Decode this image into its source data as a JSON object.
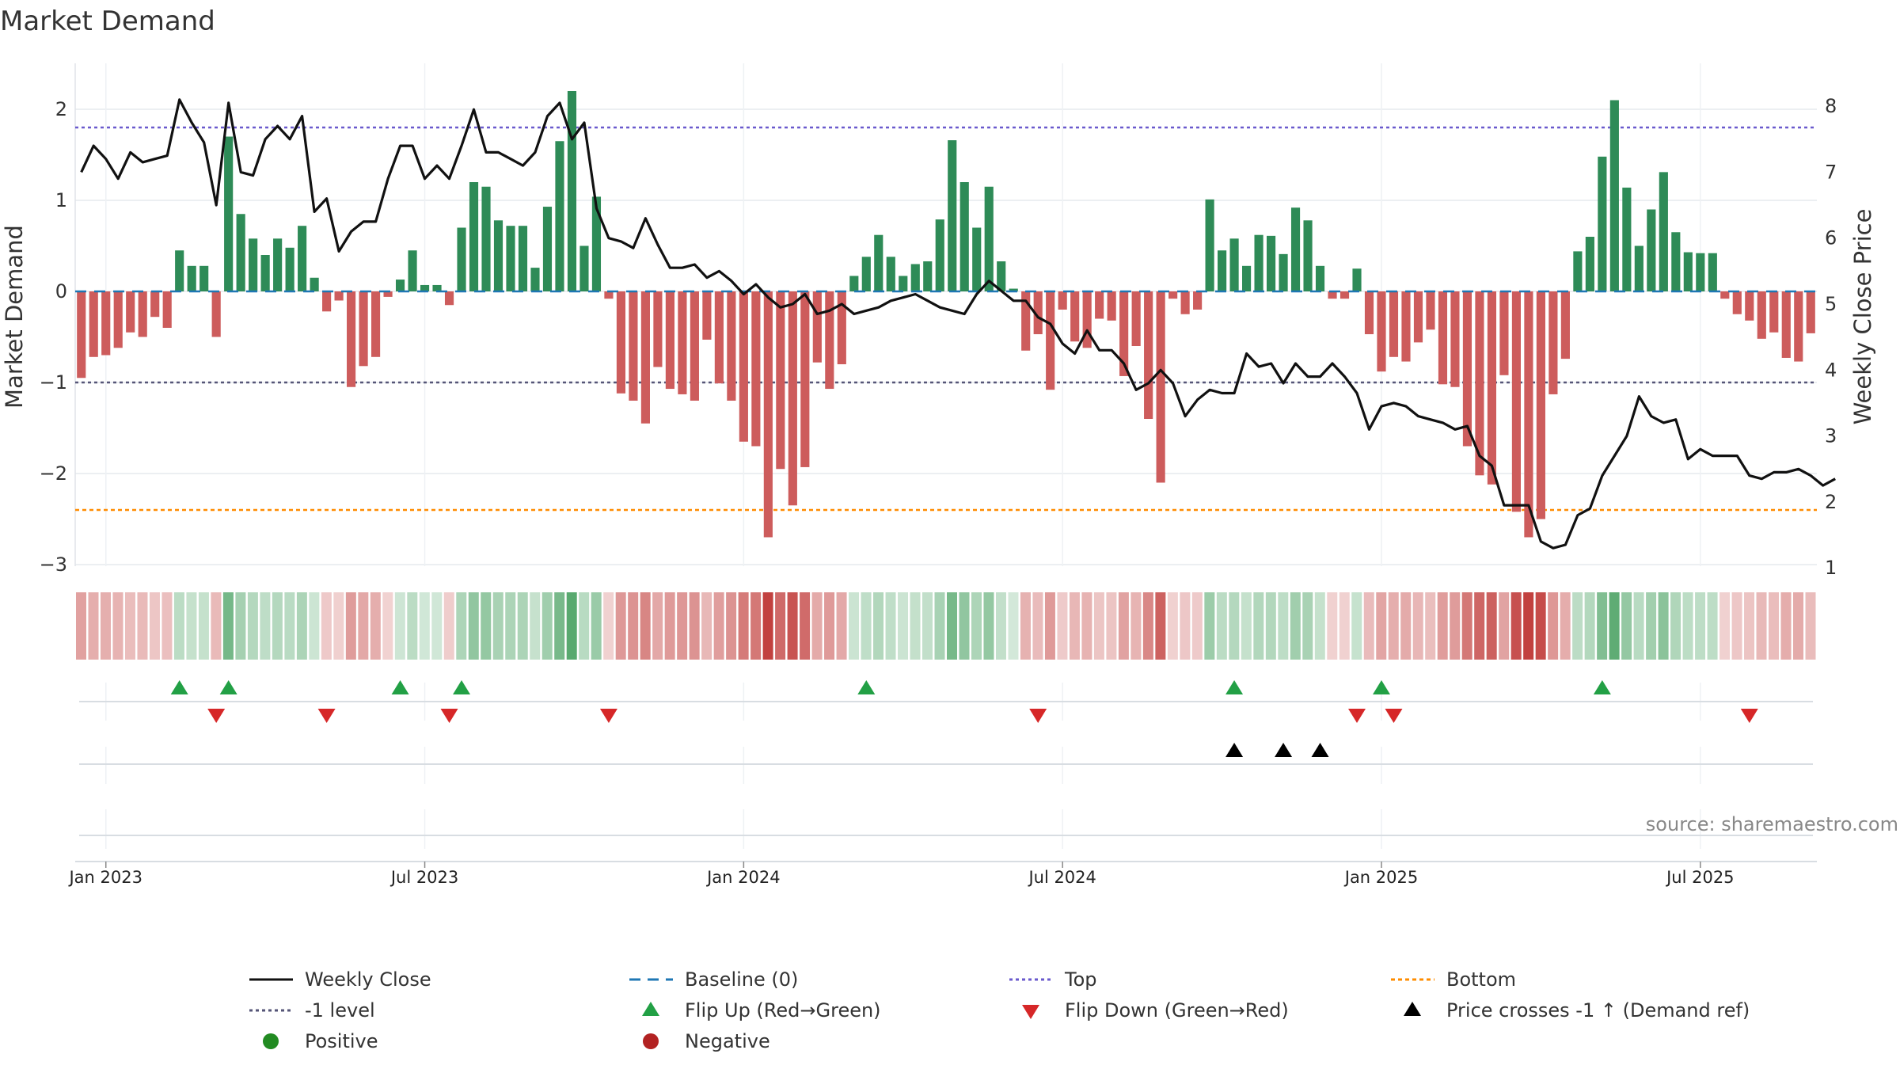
{
  "chart_data": {
    "type": "bar",
    "title": "Market Demand",
    "ylabel": "Market Demand",
    "y2label": "Weekly Close Price",
    "ylim": [
      -3.4,
      2.5
    ],
    "y2lim": [
      0.7,
      8.45
    ],
    "yticks": [
      "2",
      "1",
      "0",
      "−1",
      "−2",
      "−3"
    ],
    "y2ticks": [
      "8",
      "7",
      "6",
      "5",
      "4",
      "3",
      "2",
      "1"
    ],
    "x_labels": [
      "Jan 2023",
      "Jul 2023",
      "Jan 2024",
      "Jul 2024",
      "Jan 2025",
      "Jul 2025"
    ],
    "x_label_weeks": [
      0,
      26,
      52,
      78,
      104,
      130
    ],
    "week_offset": -2,
    "reference_lines": {
      "baseline": 0,
      "top": 1.8,
      "minus_one": -1,
      "bottom": -2.4
    },
    "series": [
      {
        "name": "Market Demand",
        "values": [
          -0.95,
          -0.72,
          -0.7,
          -0.62,
          -0.45,
          -0.5,
          -0.28,
          -0.4,
          0.45,
          0.28,
          0.28,
          -0.5,
          1.7,
          0.85,
          0.58,
          0.4,
          0.58,
          0.48,
          0.72,
          0.15,
          -0.22,
          -0.1,
          -1.05,
          -0.82,
          -0.72,
          -0.06,
          0.13,
          0.45,
          0.07,
          0.07,
          -0.15,
          0.7,
          1.2,
          1.15,
          0.78,
          0.72,
          0.72,
          0.26,
          0.93,
          1.65,
          2.2,
          0.5,
          1.04,
          -0.08,
          -1.12,
          -1.2,
          -1.45,
          -0.83,
          -1.07,
          -1.13,
          -1.2,
          -0.53,
          -1.01,
          -1.2,
          -1.65,
          -1.7,
          -2.7,
          -1.95,
          -2.35,
          -1.93,
          -0.78,
          -1.07,
          -0.8,
          0.17,
          0.38,
          0.62,
          0.38,
          0.17,
          0.3,
          0.33,
          0.79,
          1.66,
          1.2,
          0.7,
          1.15,
          0.33,
          0.03,
          -0.65,
          -0.47,
          -1.08,
          -0.2,
          -0.55,
          -0.62,
          -0.3,
          -0.32,
          -0.93,
          -0.6,
          -1.4,
          -2.1,
          -0.08,
          -0.25,
          -0.2,
          1.01,
          0.45,
          0.58,
          0.28,
          0.62,
          0.61,
          0.41,
          0.92,
          0.78,
          0.28,
          -0.08,
          -0.08,
          0.25,
          -0.47,
          -0.88,
          -0.72,
          -0.77,
          -0.56,
          -0.42,
          -1.02,
          -1.05,
          -1.7,
          -2.02,
          -2.12,
          -0.92,
          -2.42,
          -2.7,
          -2.5,
          -1.13,
          -0.74,
          0.44,
          0.6,
          1.48,
          2.1,
          1.14,
          0.5,
          0.9,
          1.31,
          0.65,
          0.43,
          0.42,
          0.42,
          -0.08,
          -0.25,
          -0.32,
          -0.52,
          -0.45,
          -0.73,
          -0.77,
          -0.46
        ]
      },
      {
        "name": "Weekly Close",
        "values": [
          7.0,
          7.4,
          7.2,
          6.9,
          7.3,
          7.15,
          7.2,
          7.25,
          8.1,
          7.75,
          7.45,
          6.5,
          8.05,
          7.0,
          6.95,
          7.5,
          7.7,
          7.5,
          7.85,
          6.4,
          6.6,
          5.8,
          6.1,
          6.25,
          6.25,
          6.9,
          7.4,
          7.4,
          6.9,
          7.1,
          6.9,
          7.4,
          7.95,
          7.3,
          7.3,
          7.2,
          7.1,
          7.3,
          7.85,
          8.05,
          7.5,
          7.75,
          6.45,
          6.0,
          5.95,
          5.85,
          6.3,
          5.9,
          5.55,
          5.55,
          5.6,
          5.4,
          5.5,
          5.35,
          5.15,
          5.3,
          5.1,
          4.95,
          5.0,
          5.15,
          4.85,
          4.9,
          5.0,
          4.85,
          4.9,
          4.95,
          5.05,
          5.1,
          5.15,
          5.05,
          4.95,
          4.9,
          4.85,
          5.15,
          5.35,
          5.2,
          5.05,
          5.05,
          4.8,
          4.7,
          4.4,
          4.25,
          4.6,
          4.3,
          4.3,
          4.1,
          3.7,
          3.8,
          4.0,
          3.8,
          3.3,
          3.55,
          3.7,
          3.65,
          3.65,
          4.25,
          4.05,
          4.1,
          3.8,
          4.1,
          3.9,
          3.9,
          4.1,
          3.9,
          3.65,
          3.1,
          3.45,
          3.5,
          3.45,
          3.3,
          3.25,
          3.2,
          3.1,
          3.15,
          2.7,
          2.55,
          1.95,
          1.95,
          1.95,
          1.4,
          1.3,
          1.35,
          1.8,
          1.9,
          2.4,
          2.7,
          3.0,
          3.6,
          3.3,
          3.2,
          3.25,
          2.65,
          2.8,
          2.7,
          2.7,
          2.7,
          2.4,
          2.35,
          2.45,
          2.45,
          2.5,
          2.4,
          2.25,
          2.35
        ]
      }
    ],
    "flip_up_weeks": [
      6,
      10,
      24,
      29,
      62,
      92,
      104,
      122
    ],
    "flip_down_weeks": [
      9,
      18,
      28,
      41,
      76,
      102,
      105,
      134
    ],
    "price_cross_weeks": [
      92,
      96,
      99
    ],
    "source_text": "source: sharemaestro.com",
    "legend": [
      {
        "label": "Weekly Close",
        "marker": "line-black"
      },
      {
        "label": "Baseline (0)",
        "marker": "dash-blue"
      },
      {
        "label": "Top",
        "marker": "dot-purple"
      },
      {
        "label": "Bottom",
        "marker": "dot-orange"
      },
      {
        "label": "-1 level",
        "marker": "dot-gray"
      },
      {
        "label": "Flip Up (Red→Green)",
        "marker": "triangle-up-green"
      },
      {
        "label": "Flip Down (Green→Red)",
        "marker": "triangle-down-red"
      },
      {
        "label": "Price crosses -1 ↑ (Demand ref)",
        "marker": "triangle-up-black"
      },
      {
        "label": "Positive",
        "marker": "circle-green"
      },
      {
        "label": "Negative",
        "marker": "circle-red"
      }
    ],
    "colors": {
      "positive": "#2e8b57",
      "negative": "#cd5c5c",
      "price_line": "#111111",
      "baseline": "#1f77b4",
      "top": "#6a5acd",
      "minus_one": "#555577",
      "bottom": "#ff8c00",
      "flip_up": "#22a045",
      "flip_down": "#d62728",
      "cross": "#000000",
      "legend_positive": "#228b22",
      "legend_negative": "#b22222"
    }
  }
}
